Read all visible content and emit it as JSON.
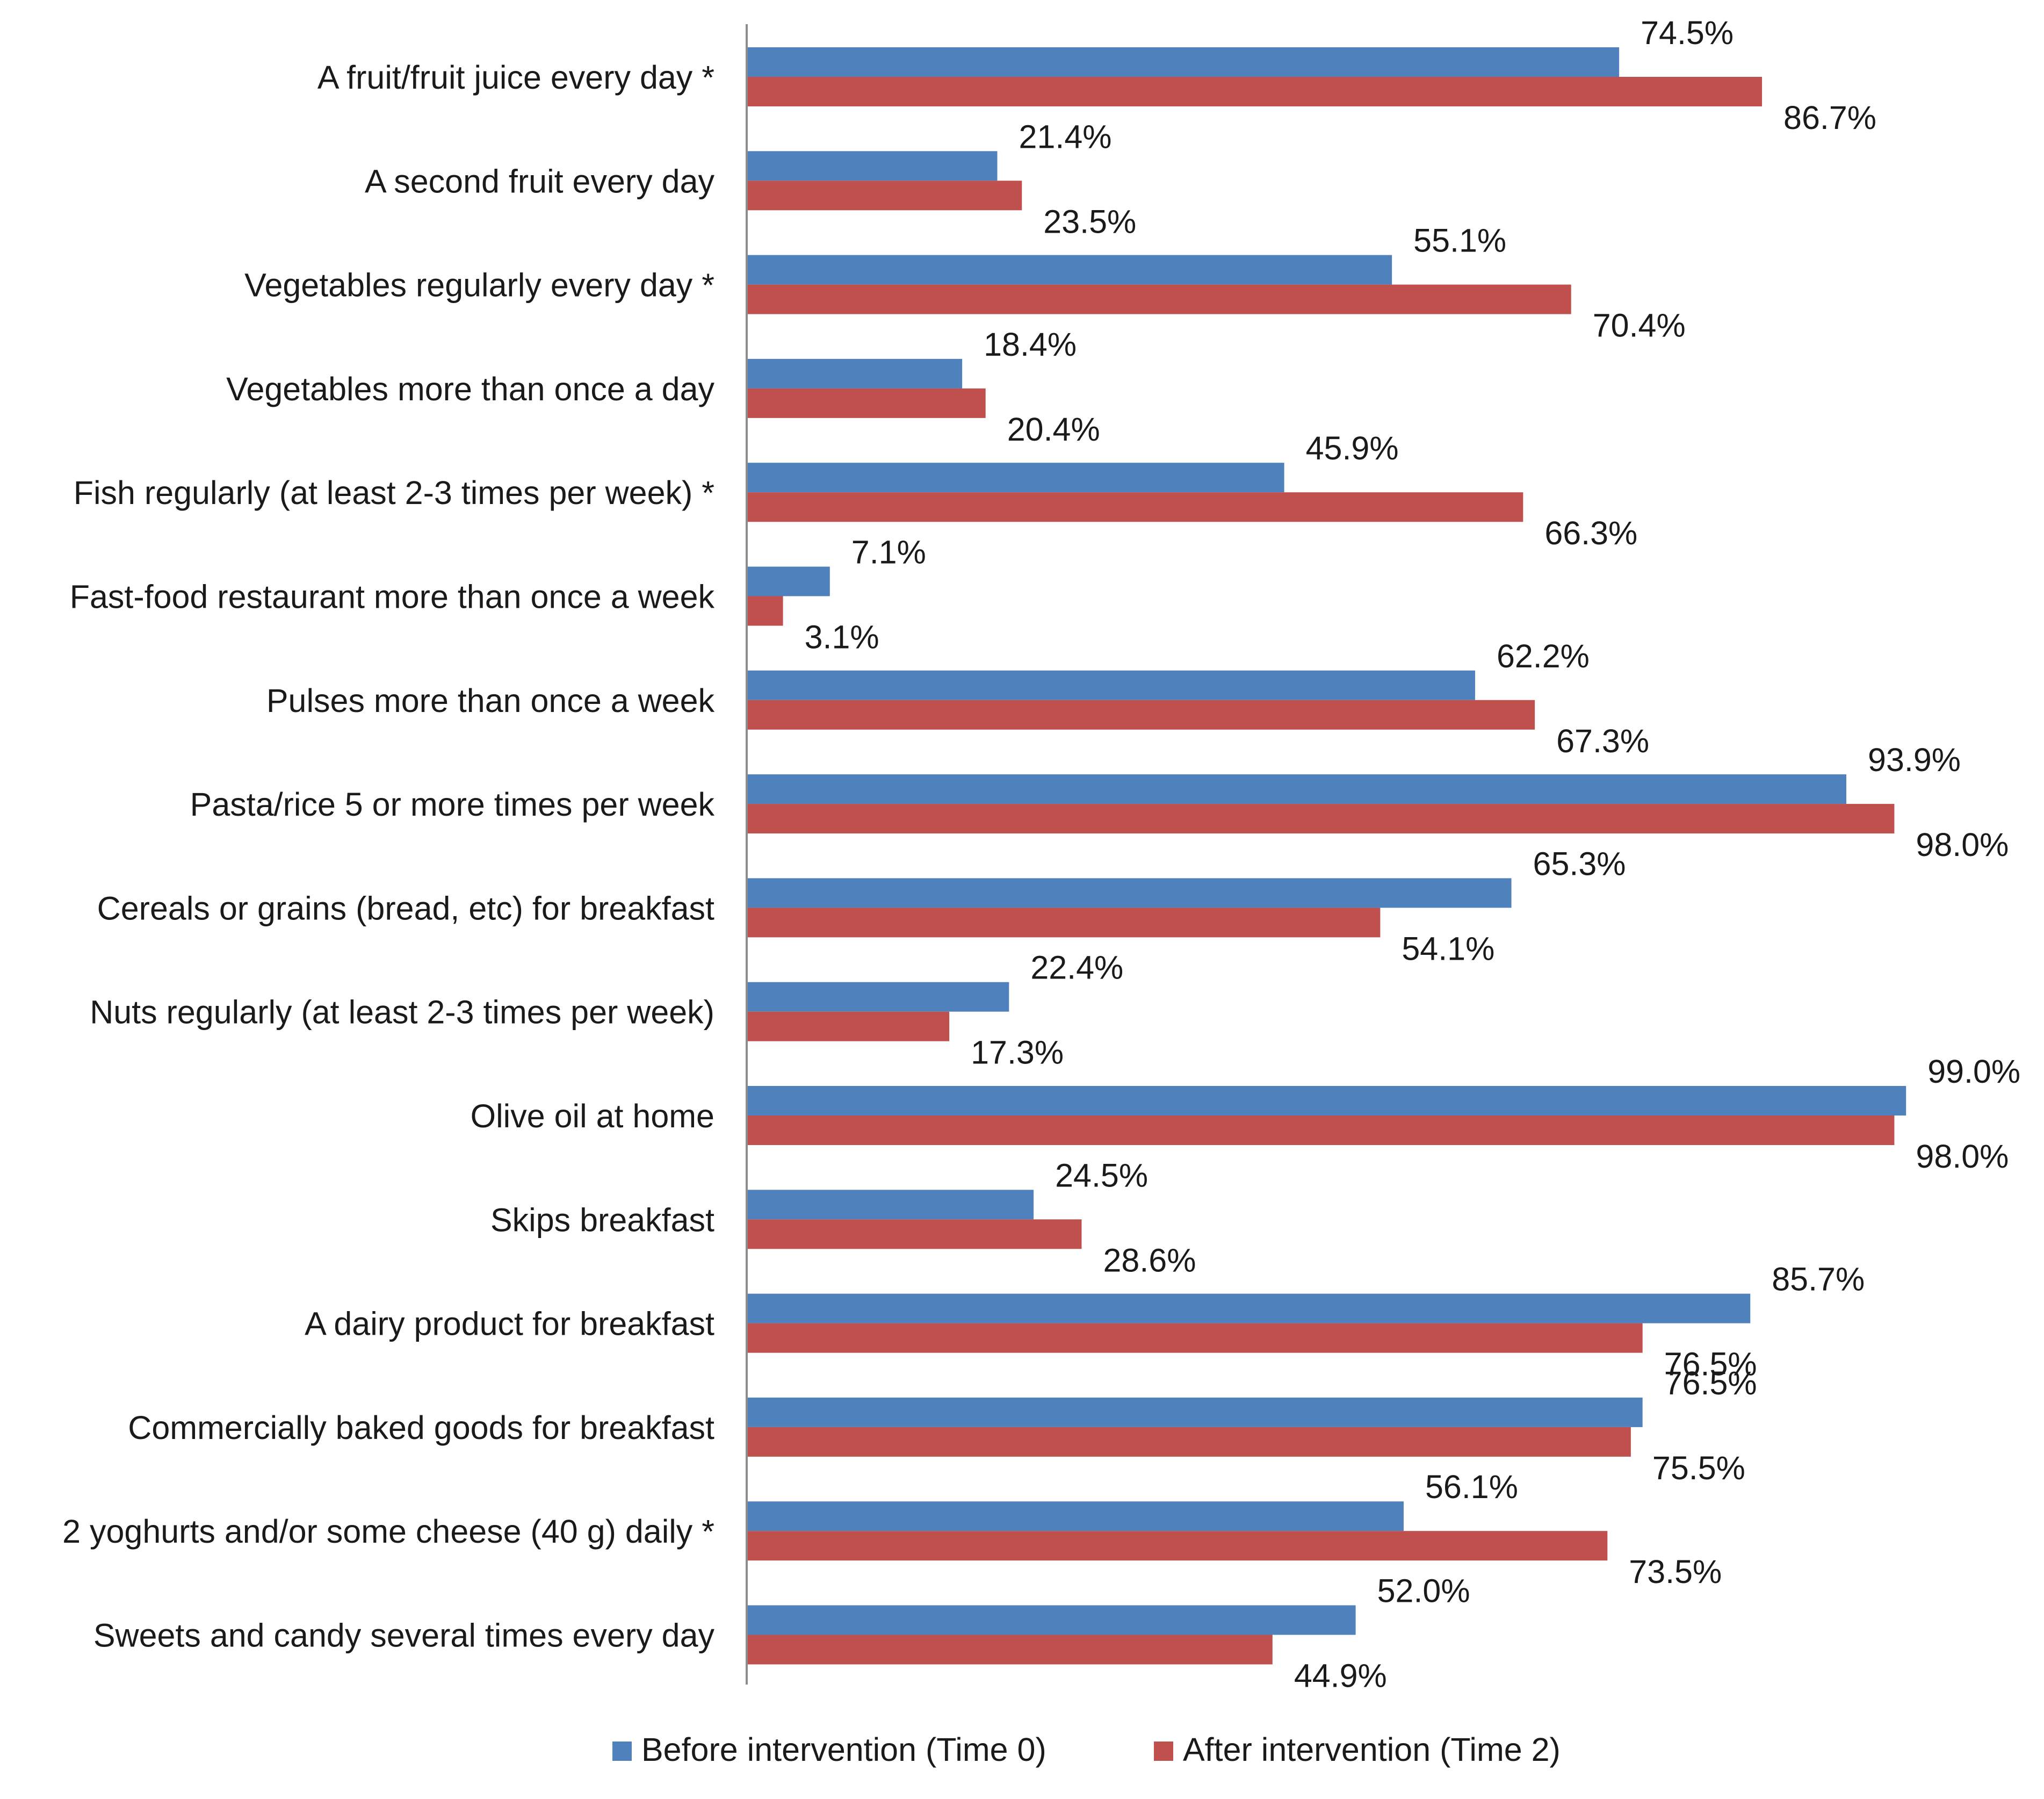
{
  "chart_data": {
    "type": "bar",
    "orientation": "horizontal",
    "categories": [
      "A fruit/fruit juice every day *",
      "A second fruit every day",
      "Vegetables regularly every day *",
      "Vegetables more than once a day",
      "Fish regularly (at least 2-3 times per week) *",
      "Fast-food restaurant more than once a week",
      "Pulses more than once a week",
      "Pasta/rice 5 or more times per week",
      "Cereals or grains (bread, etc) for breakfast",
      "Nuts regularly (at least 2-3 times per week)",
      "Olive oil at home",
      "Skips breakfast",
      "A dairy product for breakfast",
      "Commercially baked goods for breakfast",
      "2 yoghurts and/or some cheese (40 g) daily *",
      "Sweets and candy several times every day"
    ],
    "series": [
      {
        "name": "Before intervention (Time 0)",
        "color": "#4f81bd",
        "values": [
          74.5,
          21.4,
          55.1,
          18.4,
          45.9,
          7.1,
          62.2,
          93.9,
          65.3,
          22.4,
          99.0,
          24.5,
          85.7,
          76.5,
          56.1,
          52.0
        ],
        "labels": [
          "74.5%",
          "21.4%",
          "55.1%",
          "18.4%",
          "45.9%",
          "7.1%",
          "62.2%",
          "93.9%",
          "65.3%",
          "22.4%",
          "99.0%",
          "24.5%",
          "85.7%",
          "76.5%",
          "56.1%",
          "52.0%"
        ]
      },
      {
        "name": "After intervention (Time 2)",
        "color": "#c0504d",
        "values": [
          86.7,
          23.5,
          70.4,
          20.4,
          66.3,
          3.1,
          67.3,
          98.0,
          54.1,
          17.3,
          98.0,
          28.6,
          76.5,
          75.5,
          73.5,
          44.9
        ],
        "labels": [
          "86.7%",
          "23.5%",
          "70.4%",
          "20.4%",
          "66.3%",
          "3.1%",
          "67.3%",
          "98.0%",
          "54.1%",
          "17.3%",
          "98.0%",
          "28.6%",
          "76.5%",
          "75.5%",
          "73.5%",
          "44.9%"
        ]
      }
    ],
    "xlim": [
      0,
      100
    ],
    "grid": false,
    "legend": "bottom"
  }
}
